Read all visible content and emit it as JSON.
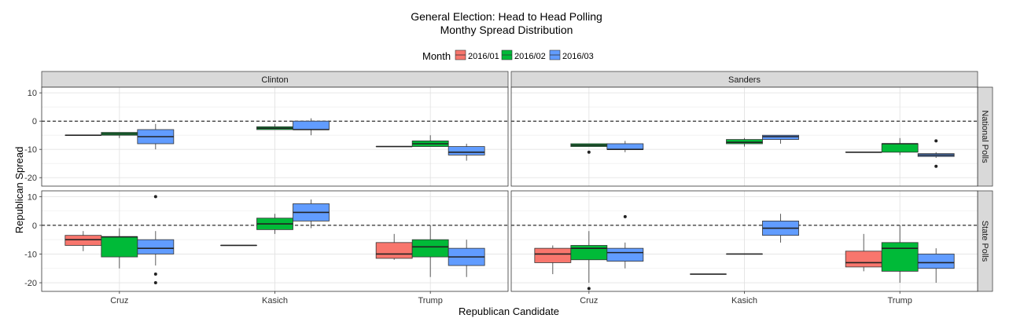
{
  "chart_data": {
    "type": "boxplot",
    "title": "General Election: Head to Head Polling",
    "subtitle": "Monthy Spread Distribution",
    "xlabel": "Republican Candidate",
    "ylabel": "Republican Spread",
    "legend": {
      "title": "Month",
      "position": "top",
      "entries": [
        "2016/01",
        "2016/02",
        "2016/03"
      ]
    },
    "colors": {
      "2016/01": "#F8766D",
      "2016/02": "#00BA38",
      "2016/03": "#619CFF"
    },
    "categories": [
      "Cruz",
      "Kasich",
      "Trump"
    ],
    "columns": [
      "Clinton",
      "Sanders"
    ],
    "rows": [
      "National Polls",
      "State Polls"
    ],
    "y_ticks": [
      10,
      0,
      -10,
      -20
    ],
    "ylim": [
      -23,
      12
    ],
    "reference_line": 0,
    "grid": true,
    "panels": [
      {
        "column": "Clinton",
        "row": "National Polls",
        "boxes": [
          {
            "candidate": "Cruz",
            "month": "2016/01",
            "lower_whisker": -5,
            "q1": -5,
            "median": -5,
            "q3": -5,
            "upper_whisker": -5,
            "outliers": []
          },
          {
            "candidate": "Cruz",
            "month": "2016/02",
            "lower_whisker": -6,
            "q1": -5,
            "median": -4.5,
            "q3": -4,
            "upper_whisker": -4,
            "outliers": []
          },
          {
            "candidate": "Cruz",
            "month": "2016/03",
            "lower_whisker": -10,
            "q1": -8,
            "median": -5.5,
            "q3": -3,
            "upper_whisker": -1,
            "outliers": []
          },
          {
            "candidate": "Kasich",
            "month": "2016/02",
            "lower_whisker": -3,
            "q1": -3,
            "median": -2.5,
            "q3": -2,
            "upper_whisker": -1,
            "outliers": []
          },
          {
            "candidate": "Kasich",
            "month": "2016/03",
            "lower_whisker": -5,
            "q1": -3,
            "median": -3,
            "q3": 0,
            "upper_whisker": 1,
            "outliers": []
          },
          {
            "candidate": "Trump",
            "month": "2016/01",
            "lower_whisker": -9,
            "q1": -9,
            "median": -9,
            "q3": -9,
            "upper_whisker": -9,
            "outliers": []
          },
          {
            "candidate": "Trump",
            "month": "2016/02",
            "lower_whisker": -9,
            "q1": -9,
            "median": -8,
            "q3": -7,
            "upper_whisker": -5,
            "outliers": []
          },
          {
            "candidate": "Trump",
            "month": "2016/03",
            "lower_whisker": -14,
            "q1": -12,
            "median": -11,
            "q3": -9,
            "upper_whisker": -8,
            "outliers": []
          }
        ]
      },
      {
        "column": "Sanders",
        "row": "National Polls",
        "boxes": [
          {
            "candidate": "Cruz",
            "month": "2016/02",
            "lower_whisker": -9,
            "q1": -9,
            "median": -8.5,
            "q3": -8,
            "upper_whisker": -8,
            "outliers": [
              -11
            ]
          },
          {
            "candidate": "Cruz",
            "month": "2016/03",
            "lower_whisker": -11,
            "q1": -10,
            "median": -10,
            "q3": -8,
            "upper_whisker": -7,
            "outliers": []
          },
          {
            "candidate": "Kasich",
            "month": "2016/02",
            "lower_whisker": -9,
            "q1": -8,
            "median": -7.5,
            "q3": -6.5,
            "upper_whisker": -6,
            "outliers": []
          },
          {
            "candidate": "Kasich",
            "month": "2016/03",
            "lower_whisker": -8,
            "q1": -6.5,
            "median": -5.5,
            "q3": -5,
            "upper_whisker": -5,
            "outliers": []
          },
          {
            "candidate": "Trump",
            "month": "2016/01",
            "lower_whisker": -11,
            "q1": -11,
            "median": -11,
            "q3": -11,
            "upper_whisker": -11,
            "outliers": []
          },
          {
            "candidate": "Trump",
            "month": "2016/02",
            "lower_whisker": -12,
            "q1": -11,
            "median": -8,
            "q3": -8,
            "upper_whisker": -6,
            "outliers": []
          },
          {
            "candidate": "Trump",
            "month": "2016/03",
            "lower_whisker": -13,
            "q1": -12.5,
            "median": -12,
            "q3": -11.5,
            "upper_whisker": -11,
            "outliers": [
              -7,
              -16
            ]
          }
        ]
      },
      {
        "column": "Clinton",
        "row": "State Polls",
        "boxes": [
          {
            "candidate": "Cruz",
            "month": "2016/01",
            "lower_whisker": -9,
            "q1": -7,
            "median": -5,
            "q3": -3.5,
            "upper_whisker": -2,
            "outliers": []
          },
          {
            "candidate": "Cruz",
            "month": "2016/02",
            "lower_whisker": -15,
            "q1": -11,
            "median": -4,
            "q3": -4,
            "upper_whisker": -1,
            "outliers": []
          },
          {
            "candidate": "Cruz",
            "month": "2016/03",
            "lower_whisker": -14,
            "q1": -10,
            "median": -8,
            "q3": -5,
            "upper_whisker": -2,
            "outliers": [
              10,
              -17,
              -20
            ]
          },
          {
            "candidate": "Kasich",
            "month": "2016/01",
            "lower_whisker": -7,
            "q1": -7,
            "median": -7,
            "q3": -7,
            "upper_whisker": -7,
            "outliers": []
          },
          {
            "candidate": "Kasich",
            "month": "2016/02",
            "lower_whisker": -3,
            "q1": -1.5,
            "median": 0.5,
            "q3": 2.5,
            "upper_whisker": 4,
            "outliers": []
          },
          {
            "candidate": "Kasich",
            "month": "2016/03",
            "lower_whisker": -1,
            "q1": 1.5,
            "median": 4.5,
            "q3": 7.5,
            "upper_whisker": 9,
            "outliers": []
          },
          {
            "candidate": "Trump",
            "month": "2016/01",
            "lower_whisker": -12,
            "q1": -11.5,
            "median": -10,
            "q3": -6,
            "upper_whisker": -3,
            "outliers": []
          },
          {
            "candidate": "Trump",
            "month": "2016/02",
            "lower_whisker": -18,
            "q1": -11,
            "median": -7.5,
            "q3": -5,
            "upper_whisker": 0,
            "outliers": []
          },
          {
            "candidate": "Trump",
            "month": "2016/03",
            "lower_whisker": -18,
            "q1": -14,
            "median": -11,
            "q3": -8,
            "upper_whisker": -5,
            "outliers": []
          }
        ]
      },
      {
        "column": "Sanders",
        "row": "State Polls",
        "boxes": [
          {
            "candidate": "Cruz",
            "month": "2016/01",
            "lower_whisker": -17,
            "q1": -13,
            "median": -10,
            "q3": -8,
            "upper_whisker": -7,
            "outliers": []
          },
          {
            "candidate": "Cruz",
            "month": "2016/02",
            "lower_whisker": -20,
            "q1": -12,
            "median": -8,
            "q3": -7,
            "upper_whisker": -2,
            "outliers": [
              -22
            ]
          },
          {
            "candidate": "Cruz",
            "month": "2016/03",
            "lower_whisker": -15,
            "q1": -12.5,
            "median": -9.5,
            "q3": -8,
            "upper_whisker": -6,
            "outliers": [
              3
            ]
          },
          {
            "candidate": "Kasich",
            "month": "2016/01",
            "lower_whisker": -17,
            "q1": -17,
            "median": -17,
            "q3": -17,
            "upper_whisker": -17,
            "outliers": []
          },
          {
            "candidate": "Kasich",
            "month": "2016/02",
            "lower_whisker": -10,
            "q1": -10,
            "median": -10,
            "q3": -10,
            "upper_whisker": -10,
            "outliers": []
          },
          {
            "candidate": "Kasich",
            "month": "2016/03",
            "lower_whisker": -6,
            "q1": -3.5,
            "median": -1,
            "q3": 1.5,
            "upper_whisker": 4,
            "outliers": []
          },
          {
            "candidate": "Trump",
            "month": "2016/01",
            "lower_whisker": -16,
            "q1": -14.5,
            "median": -13,
            "q3": -9,
            "upper_whisker": -3,
            "outliers": []
          },
          {
            "candidate": "Trump",
            "month": "2016/02",
            "lower_whisker": -20,
            "q1": -16,
            "median": -8,
            "q3": -6,
            "upper_whisker": 0,
            "outliers": []
          },
          {
            "candidate": "Trump",
            "month": "2016/03",
            "lower_whisker": -20,
            "q1": -15,
            "median": -13,
            "q3": -10,
            "upper_whisker": -8,
            "outliers": []
          }
        ]
      }
    ]
  }
}
